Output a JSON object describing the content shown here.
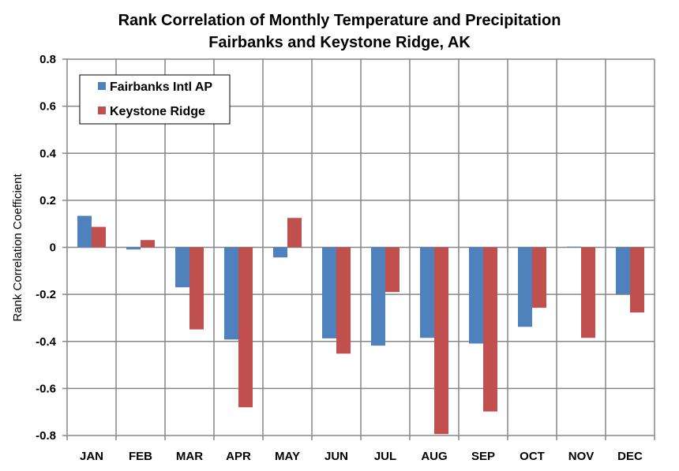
{
  "chart_data": {
    "type": "bar",
    "title": "Rank Correlation of Monthly Temperature and Precipitation",
    "subtitle": "Fairbanks and Keystone Ridge, AK",
    "xlabel": "",
    "ylabel": "Rank Correlation Coefficient",
    "ylim": [
      -0.8,
      0.8
    ],
    "yticks": [
      0.8,
      0.6,
      0.4,
      0.2,
      0,
      -0.2,
      -0.4,
      -0.6,
      -0.8
    ],
    "ytick_labels": [
      "0.8",
      "0.6",
      "0.4",
      "0.2",
      "0",
      "-0.2",
      "-0.4",
      "-0.6",
      "-0.8"
    ],
    "grid": true,
    "legend_position": "top-left",
    "categories": [
      "JAN",
      "FEB",
      "MAR",
      "APR",
      "MAY",
      "JUN",
      "JUL",
      "AUG",
      "SEP",
      "OCT",
      "NOV",
      "DEC"
    ],
    "series": [
      {
        "name": "Fairbanks Intl AP",
        "color": "#4f81bd",
        "values": [
          0.134,
          -0.009,
          -0.17,
          -0.392,
          -0.043,
          -0.387,
          -0.418,
          -0.385,
          -0.409,
          -0.338,
          0.003,
          -0.199
        ]
      },
      {
        "name": "Keystone Ridge",
        "color": "#c0504d",
        "values": [
          0.087,
          0.031,
          -0.349,
          -0.68,
          0.125,
          -0.452,
          -0.19,
          -0.794,
          -0.698,
          -0.257,
          -0.385,
          -0.277
        ]
      }
    ]
  }
}
